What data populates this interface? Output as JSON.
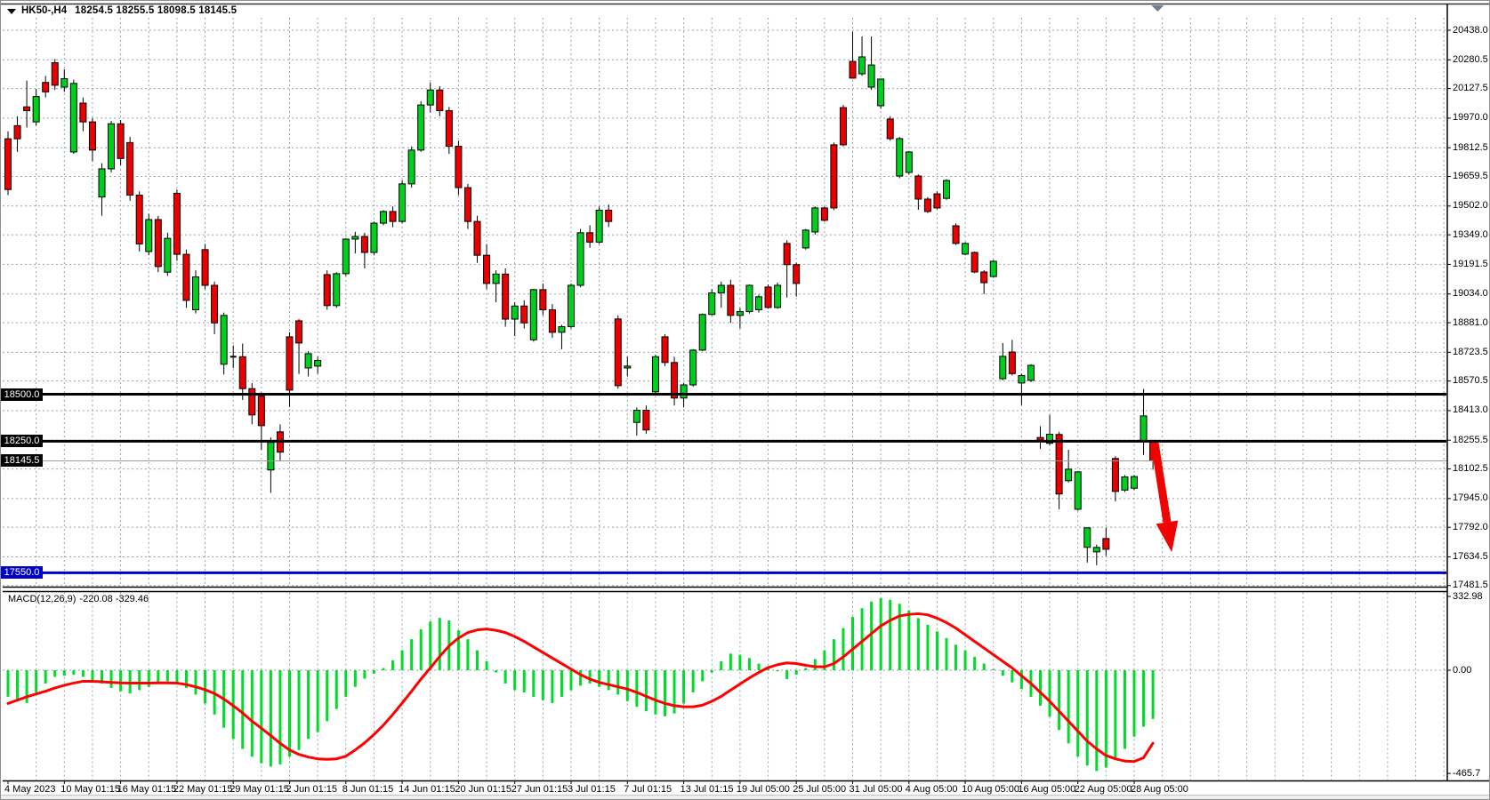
{
  "header": {
    "symbol_period": "HK50-,H4",
    "open": "18254.5",
    "high": "18255.5",
    "low": "18098.5",
    "close": "18145.5",
    "ohlc_text": "18254.5 18255.5 18098.5 18145.5"
  },
  "colors": {
    "background": "#FFFFFF",
    "grid": "#94A2B0",
    "bull": "#00CE1F",
    "bear": "#EA0001",
    "wick": "#000000",
    "hline_black": "#000000",
    "hline_blue": "#0000C6",
    "current_price_line": "#9A9A9A",
    "macd_histogram": "#00DC28",
    "macd_signal": "#FF0000",
    "arrow": "#F00400",
    "badge_text": "#FFFFFF",
    "shift_marker": "#6F7F8F"
  },
  "chart_data": [
    {
      "type": "candlestick",
      "title": "HK50-,H4",
      "current_bar": {
        "open": 18254.5,
        "high": 18255.5,
        "low": 18098.5,
        "close": 18145.5
      },
      "y_axis": {
        "labels": [
          "20438.0",
          "20280.5",
          "20127.5",
          "19970.0",
          "19812.5",
          "19659.5",
          "19502.0",
          "19349.0",
          "19191.5",
          "19034.0",
          "18881.0",
          "18723.5",
          "18570.5",
          "18413.0",
          "18255.5",
          "18102.5",
          "17945.0",
          "17792.0",
          "17634.5",
          "17481.5"
        ],
        "top_value": 20438.0,
        "bottom_value": 17481.5
      },
      "x_axis": {
        "labels": [
          "4 May 2023",
          "10 May 01:15",
          "16 May 01:15",
          "22 May 01:15",
          "29 May 01:15",
          "2 Jun 01:15",
          "8 Jun 01:15",
          "14 Jun 01:15",
          "20 Jun 01:15",
          "27 Jun 01:15",
          "3 Jul 01:15",
          "7 Jul 01:15",
          "13 Jul 01:15",
          "19 Jul 05:00",
          "25 Jul 05:00",
          "31 Jul 05:00",
          "4 Aug 05:00",
          "10 Aug 05:00",
          "16 Aug 05:00",
          "22 Aug 05:00",
          "28 Aug 05:00"
        ],
        "bars_per_label": 6
      },
      "horizontal_lines": [
        {
          "price": 18500.0,
          "label": "18500.0",
          "color": "#000000",
          "width": 3
        },
        {
          "price": 18250.0,
          "label": "18250.0",
          "color": "#000000",
          "width": 3
        },
        {
          "price": 17550.0,
          "label": "17550.0",
          "color": "#0000C6",
          "width": 3
        }
      ],
      "current_price": {
        "value": 18145.5,
        "label": "18145.5"
      },
      "candles_ohlc": [
        [
          19860,
          19900,
          19560,
          19590
        ],
        [
          19930,
          19980,
          19790,
          19860
        ],
        [
          20030,
          20170,
          19920,
          20010
        ],
        [
          19950,
          20125,
          19930,
          20085
        ],
        [
          20160,
          20195,
          20080,
          20110
        ],
        [
          20265,
          20285,
          20120,
          20145
        ],
        [
          20135,
          20230,
          20110,
          20180
        ],
        [
          19790,
          20175,
          19780,
          20155
        ],
        [
          20050,
          20080,
          19900,
          19950
        ],
        [
          19950,
          19970,
          19740,
          19800
        ],
        [
          19550,
          19730,
          19450,
          19700
        ],
        [
          19700,
          19955,
          19680,
          19940
        ],
        [
          19940,
          19960,
          19720,
          19755
        ],
        [
          19840,
          19870,
          19530,
          19560
        ],
        [
          19560,
          19580,
          19260,
          19300
        ],
        [
          19260,
          19460,
          19240,
          19430
        ],
        [
          19430,
          19450,
          19150,
          19180
        ],
        [
          19150,
          19360,
          19130,
          19330
        ],
        [
          19570,
          19590,
          19210,
          19245
        ],
        [
          19245,
          19270,
          18960,
          19000
        ],
        [
          18950,
          19160,
          18930,
          19125
        ],
        [
          19270,
          19300,
          19060,
          19080
        ],
        [
          19080,
          19100,
          18820,
          18880
        ],
        [
          18660,
          18935,
          18605,
          18920
        ],
        [
          18705,
          18760,
          18640,
          18700
        ],
        [
          18700,
          18770,
          18470,
          18530
        ],
        [
          18530,
          18560,
          18340,
          18390
        ],
        [
          18490,
          18510,
          18205,
          18333
        ],
        [
          18097,
          18270,
          17975,
          18244
        ],
        [
          18300,
          18340,
          18144,
          18192
        ],
        [
          18806,
          18830,
          18433,
          18522
        ],
        [
          18891,
          18900,
          18608,
          18773
        ],
        [
          18640,
          18730,
          18595,
          18716
        ],
        [
          18650,
          18700,
          18610,
          18680
        ],
        [
          19137,
          19160,
          18950,
          18972
        ],
        [
          18972,
          19150,
          18960,
          19142
        ],
        [
          19142,
          19330,
          19130,
          19326
        ],
        [
          19326,
          19365,
          19250,
          19340
        ],
        [
          19340,
          19360,
          19170,
          19255
        ],
        [
          19255,
          19420,
          19240,
          19411
        ],
        [
          19411,
          19480,
          19400,
          19473
        ],
        [
          19473,
          19500,
          19390,
          19420
        ],
        [
          19420,
          19640,
          19410,
          19620
        ],
        [
          19620,
          19820,
          19600,
          19800
        ],
        [
          19800,
          20060,
          19790,
          20040
        ],
        [
          20040,
          20160,
          20000,
          20120
        ],
        [
          20120,
          20140,
          19980,
          20010
        ],
        [
          20010,
          20030,
          19780,
          19820
        ],
        [
          19820,
          19850,
          19560,
          19600
        ],
        [
          19600,
          19620,
          19380,
          19420
        ],
        [
          19420,
          19450,
          19200,
          19240
        ],
        [
          19240,
          19300,
          19060,
          19090
        ],
        [
          19090,
          19160,
          18990,
          19140
        ],
        [
          19140,
          19170,
          18860,
          18900
        ],
        [
          18900,
          18990,
          18810,
          18970
        ],
        [
          18970,
          19000,
          18850,
          18880
        ],
        [
          18790,
          19060,
          18780,
          19057
        ],
        [
          19057,
          19090,
          18920,
          18950
        ],
        [
          18950,
          18980,
          18800,
          18830
        ],
        [
          18830,
          18870,
          18740,
          18860
        ],
        [
          18860,
          19090,
          18850,
          19080
        ],
        [
          19080,
          19380,
          19070,
          19360
        ],
        [
          19360,
          19400,
          19280,
          19310
        ],
        [
          19310,
          19500,
          19300,
          19480
        ],
        [
          19480,
          19510,
          19390,
          19420
        ],
        [
          18901,
          18920,
          18530,
          18546
        ],
        [
          18640,
          18700,
          18595,
          18650
        ],
        [
          18350,
          18430,
          18280,
          18415
        ],
        [
          18415,
          18440,
          18290,
          18310
        ],
        [
          18513,
          18711,
          18500,
          18700
        ],
        [
          18806,
          18820,
          18650,
          18669
        ],
        [
          18669,
          18700,
          18440,
          18480
        ],
        [
          18480,
          18560,
          18430,
          18550
        ],
        [
          18550,
          18740,
          18540,
          18735
        ],
        [
          18735,
          18930,
          18730,
          18925
        ],
        [
          18925,
          19060,
          18920,
          19040
        ],
        [
          19040,
          19100,
          18960,
          19080
        ],
        [
          19080,
          19110,
          18880,
          18920
        ],
        [
          18920,
          18960,
          18850,
          18940
        ],
        [
          18940,
          19085,
          18930,
          19080
        ],
        [
          18950,
          19030,
          18935,
          19019
        ],
        [
          19071,
          19085,
          18955,
          18962
        ],
        [
          18962,
          19095,
          18955,
          19080
        ],
        [
          19303,
          19320,
          19015,
          19190
        ],
        [
          19190,
          19200,
          19020,
          19090
        ],
        [
          19279,
          19380,
          19270,
          19374
        ],
        [
          19364,
          19500,
          19350,
          19492
        ],
        [
          19492,
          19500,
          19420,
          19426
        ],
        [
          19828,
          19840,
          19480,
          19492
        ],
        [
          20026,
          20040,
          19820,
          19828
        ],
        [
          20272,
          20430,
          20180,
          20183
        ],
        [
          20206,
          20405,
          20195,
          20296
        ],
        [
          20135,
          20405,
          20120,
          20253
        ],
        [
          20036,
          20180,
          20020,
          20178
        ],
        [
          19965,
          19980,
          19850,
          19861
        ],
        [
          19662,
          19870,
          19650,
          19861
        ],
        [
          19681,
          19795,
          19670,
          19790
        ],
        [
          19662,
          19670,
          19482,
          19539
        ],
        [
          19539,
          19550,
          19465,
          19473
        ],
        [
          19567,
          19580,
          19485,
          19492
        ],
        [
          19543,
          19645,
          19535,
          19638
        ],
        [
          19397,
          19410,
          19295,
          19303
        ],
        [
          19246,
          19310,
          19240,
          19303
        ],
        [
          19255,
          19260,
          19145,
          19151
        ],
        [
          19151,
          19160,
          19033,
          19094
        ],
        [
          19127,
          19215,
          19120,
          19208
        ],
        [
          18583,
          18773,
          18575,
          18702
        ],
        [
          18725,
          18790,
          18600,
          18610
        ],
        [
          18560,
          18610,
          18442,
          18600
        ],
        [
          18574,
          18660,
          18565,
          18654
        ],
        [
          18270,
          18330,
          18210,
          18255
        ],
        [
          18239,
          18390,
          18230,
          18287
        ],
        [
          18286,
          18300,
          17888,
          17969
        ],
        [
          18040,
          18205,
          18030,
          18101
        ],
        [
          17888,
          18090,
          17880,
          18087
        ],
        [
          17685,
          17790,
          17604,
          17789
        ],
        [
          17661,
          17700,
          17590,
          17685
        ],
        [
          17732,
          17790,
          17640,
          17675
        ],
        [
          18158,
          18170,
          17930,
          17983
        ],
        [
          17990,
          18070,
          17980,
          18060
        ],
        [
          18000,
          18070,
          17990,
          18062
        ],
        [
          18250,
          18528,
          18177,
          18385
        ],
        [
          18254.5,
          18255.5,
          18098.5,
          18145.5
        ]
      ]
    },
    {
      "type": "bar",
      "title": "MACD(12,26,9)",
      "values_text": "-220.08 -329.46",
      "macd_value": -220.08,
      "signal_value": -329.46,
      "y_axis": {
        "labels": [
          "332.98",
          "0.00",
          "-465.7"
        ],
        "values": [
          332.98,
          0,
          -465.7
        ]
      },
      "histogram": [
        -120,
        -135,
        -148,
        -100,
        -60,
        -30,
        -25,
        -20,
        -30,
        -45,
        -60,
        -80,
        -95,
        -105,
        -90,
        -75,
        -60,
        -50,
        -60,
        -80,
        -110,
        -150,
        -200,
        -260,
        -310,
        -355,
        -390,
        -420,
        -435,
        -425,
        -390,
        -360,
        -310,
        -280,
        -230,
        -175,
        -120,
        -75,
        -38,
        -15,
        10,
        45,
        90,
        140,
        185,
        220,
        236,
        225,
        180,
        140,
        90,
        40,
        -10,
        -60,
        -90,
        -100,
        -120,
        -135,
        -148,
        -120,
        -90,
        -70,
        -60,
        -75,
        -90,
        -110,
        -140,
        -165,
        -185,
        -200,
        -208,
        -195,
        -150,
        -100,
        -50,
        -10,
        40,
        75,
        70,
        55,
        30,
        10,
        -5,
        -40,
        -20,
        10,
        50,
        90,
        140,
        190,
        240,
        280,
        310,
        325,
        318,
        300,
        270,
        235,
        205,
        175,
        145,
        115,
        90,
        60,
        30,
        5,
        -25,
        -55,
        -85,
        -120,
        -160,
        -210,
        -270,
        -330,
        -390,
        -430,
        -455,
        -440,
        -400,
        -355,
        -300,
        -255,
        -220.08
      ],
      "signal_line": [
        -150,
        -135,
        -120,
        -107,
        -95,
        -80,
        -68,
        -58,
        -50,
        -50,
        -52,
        -55,
        -57,
        -58,
        -58,
        -58,
        -57,
        -57,
        -58,
        -65,
        -75,
        -88,
        -105,
        -130,
        -160,
        -193,
        -230,
        -262,
        -295,
        -330,
        -360,
        -380,
        -392,
        -400,
        -402,
        -400,
        -388,
        -360,
        -328,
        -290,
        -248,
        -200,
        -148,
        -95,
        -40,
        10,
        62,
        110,
        145,
        170,
        182,
        186,
        180,
        170,
        152,
        130,
        105,
        80,
        55,
        30,
        5,
        -20,
        -40,
        -55,
        -65,
        -75,
        -85,
        -100,
        -118,
        -135,
        -150,
        -160,
        -165,
        -165,
        -158,
        -140,
        -118,
        -90,
        -62,
        -35,
        -10,
        12,
        25,
        33,
        30,
        22,
        16,
        15,
        30,
        60,
        95,
        130,
        165,
        200,
        225,
        245,
        252,
        255,
        250,
        235,
        215,
        190,
        160,
        130,
        100,
        70,
        40,
        10,
        -25,
        -60,
        -100,
        -140,
        -185,
        -230,
        -275,
        -320,
        -355,
        -385,
        -400,
        -410,
        -412,
        -395,
        -329.46
      ]
    }
  ],
  "annotations": {
    "down_arrow": {
      "color": "#F00400",
      "bar_start": 122,
      "price_start": 18240,
      "bar_end": 124,
      "price_end": 17660
    },
    "shift_marker": {
      "shape": "triangle-down",
      "bar": 122.5
    }
  }
}
